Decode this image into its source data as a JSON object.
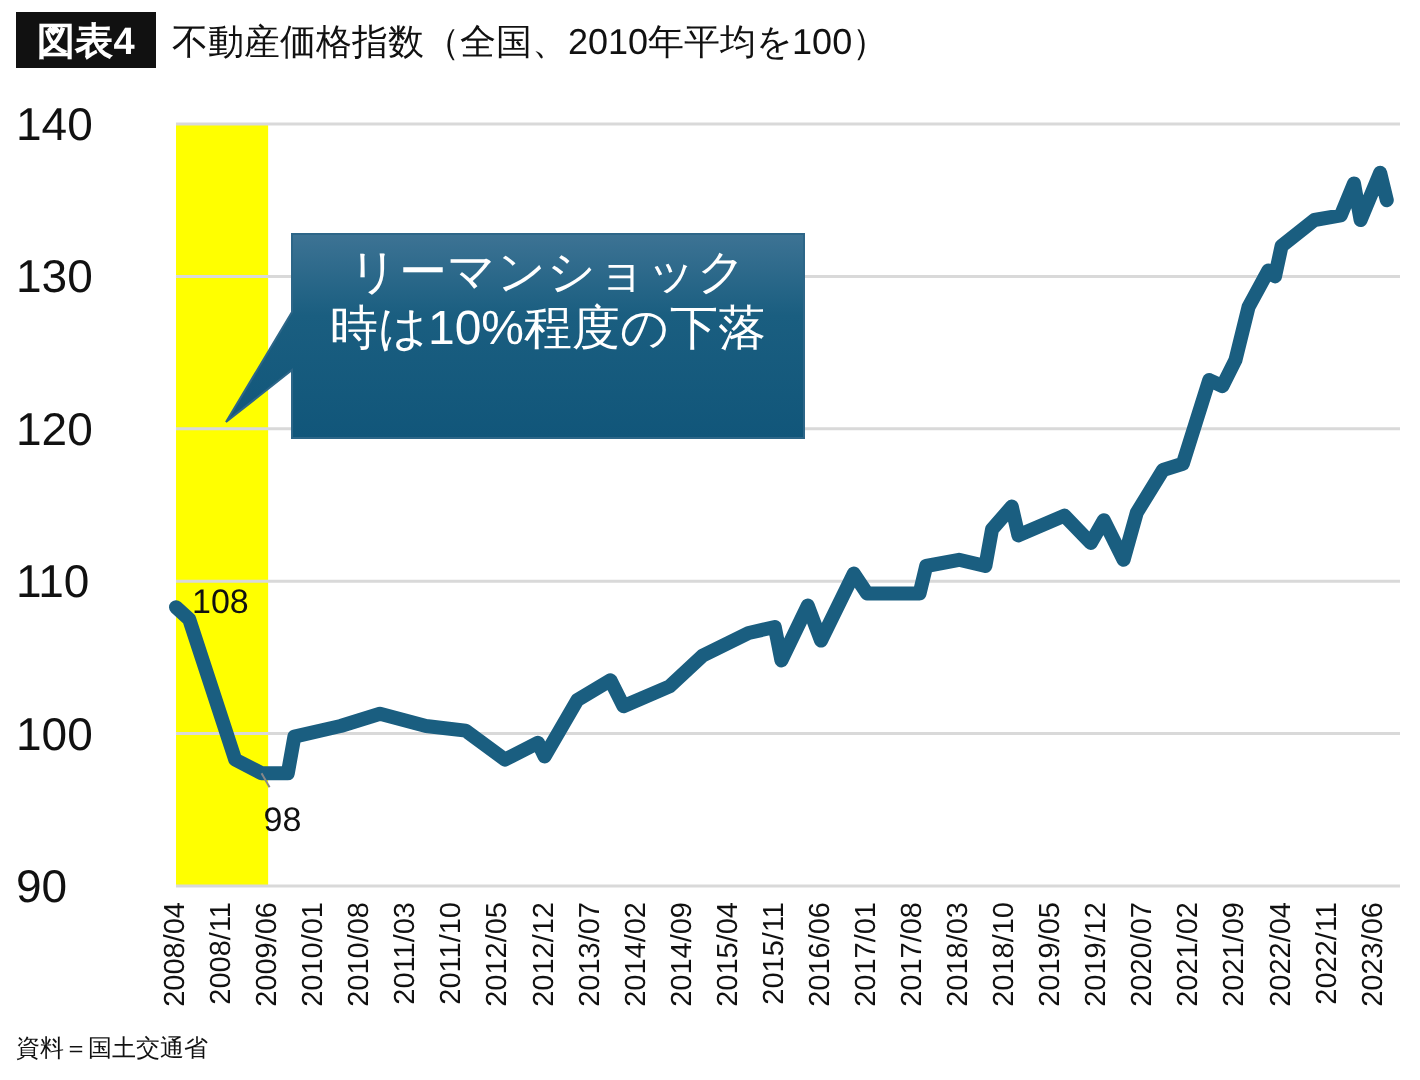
{
  "chart_data": {
    "type": "line",
    "title": "不動産価格指数（全国、2010年平均を100）",
    "x": [
      "2008-04",
      "2008-06",
      "2009-01",
      "2009-05",
      "2009-09",
      "2009-10",
      "2010-05",
      "2010-11",
      "2011-06",
      "2011-12",
      "2012-06",
      "2012-11",
      "2012-12",
      "2013-05",
      "2013-10",
      "2013-12",
      "2014-07",
      "2014-12",
      "2015-07",
      "2015-11",
      "2015-12",
      "2016-04",
      "2016-06",
      "2016-11",
      "2017-01",
      "2017-09",
      "2017-10",
      "2018-03",
      "2018-07",
      "2018-08",
      "2018-11",
      "2018-12",
      "2019-07",
      "2019-11",
      "2020-01",
      "2020-04",
      "2020-06",
      "2020-10",
      "2021-01",
      "2021-05",
      "2021-07",
      "2021-09",
      "2021-11",
      "2022-02",
      "2022-03",
      "2022-04",
      "2022-09",
      "2023-01",
      "2023-03",
      "2023-04",
      "2023-07",
      "2023-08"
    ],
    "series": [
      {
        "color": "#1a5e80",
        "values": [
          108.3,
          107.5,
          98.3,
          97.4,
          97.4,
          99.8,
          100.5,
          101.3,
          100.5,
          100.2,
          98.3,
          99.4,
          98.5,
          102.2,
          103.5,
          101.8,
          103.1,
          105.1,
          106.6,
          107,
          104.8,
          108.4,
          106.1,
          110.5,
          109.2,
          109.2,
          111,
          111.4,
          111,
          113.4,
          114.9,
          113,
          114.3,
          112.5,
          114,
          111.4,
          114.5,
          117.3,
          117.7,
          123.2,
          122.8,
          124.5,
          128,
          130.4,
          130,
          132,
          133.7,
          134,
          136.1,
          133.7,
          136.8,
          135
        ]
      }
    ],
    "xlim": [
      "2008-04",
      "2023-10"
    ],
    "xticks": [
      {
        "value": "2008-04",
        "label": "2008/04"
      },
      {
        "value": "2008-11",
        "label": "2008/11"
      },
      {
        "value": "2009-06",
        "label": "2009/06"
      },
      {
        "value": "2010-01",
        "label": "2010/01"
      },
      {
        "value": "2010-08",
        "label": "2010/08"
      },
      {
        "value": "2011-03",
        "label": "2011/03"
      },
      {
        "value": "2011-10",
        "label": "2011/10"
      },
      {
        "value": "2012-05",
        "label": "2012/05"
      },
      {
        "value": "2012-12",
        "label": "2012/12"
      },
      {
        "value": "2013-07",
        "label": "2013/07"
      },
      {
        "value": "2014-02",
        "label": "2014/02"
      },
      {
        "value": "2014-09",
        "label": "2014/09"
      },
      {
        "value": "2015-04",
        "label": "2015/04"
      },
      {
        "value": "2015-11",
        "label": "2015/11"
      },
      {
        "value": "2016-06",
        "label": "2016/06"
      },
      {
        "value": "2017-01",
        "label": "2017/01"
      },
      {
        "value": "2017-08",
        "label": "2017/08"
      },
      {
        "value": "2018-03",
        "label": "2018/03"
      },
      {
        "value": "2018-10",
        "label": "2018/10"
      },
      {
        "value": "2019-05",
        "label": "2019/05"
      },
      {
        "value": "2019-12",
        "label": "2019/12"
      },
      {
        "value": "2020-07",
        "label": "2020/07"
      },
      {
        "value": "2021-02",
        "label": "2021/02"
      },
      {
        "value": "2021-09",
        "label": "2021/09"
      },
      {
        "value": "2022-04",
        "label": "2022/04"
      },
      {
        "value": "2022-11",
        "label": "2022/11"
      },
      {
        "value": "2023-06",
        "label": "2023/06"
      }
    ],
    "ylim": [
      90,
      140
    ],
    "yticks": [
      90,
      100,
      110,
      120,
      130,
      140
    ],
    "grid": "y",
    "marker": "none",
    "line_style": "solid",
    "bands": [
      {
        "axis": "x",
        "from": "2008-04",
        "to": "2009-06",
        "color": "#ffff00"
      }
    ],
    "annotations": [
      "図表4",
      "リーマンショック時は10%程度の下落",
      "資料＝国土交通省",
      {
        "text": "108",
        "x": "2008-04",
        "y": 108.3
      },
      {
        "text": "98",
        "x": "2009-05",
        "y": 97.4
      }
    ]
  }
}
